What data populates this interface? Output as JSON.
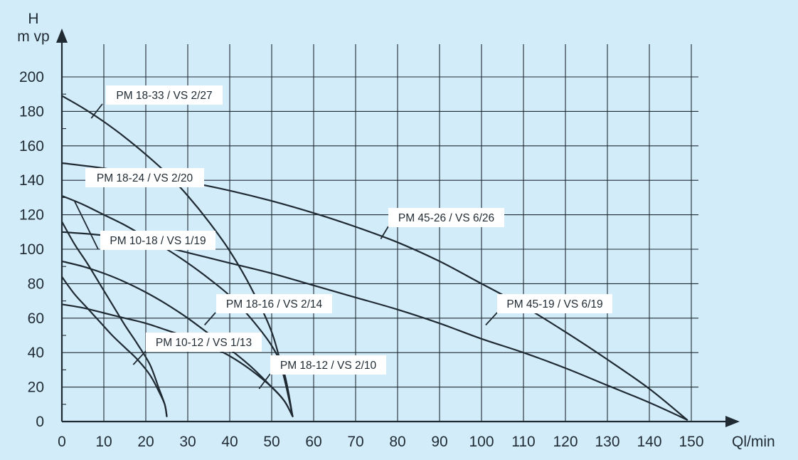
{
  "colors": {
    "background": "#d3ecfa",
    "ink": "#1f2a33",
    "label_box": "#ffffff"
  },
  "chart_data": {
    "type": "line",
    "title": "",
    "xlabel": "Ql/min",
    "ylabel_line1": "H",
    "ylabel_line2": "m vp",
    "xlim": [
      0,
      150
    ],
    "ylim": [
      0,
      200
    ],
    "x_ticks": [
      0,
      10,
      20,
      30,
      40,
      50,
      60,
      70,
      80,
      90,
      100,
      110,
      120,
      130,
      140,
      150
    ],
    "x_tick_labels": [
      "0",
      "10",
      "20",
      "30",
      "40",
      "50",
      "60",
      "70",
      "80",
      "90",
      "100",
      "110",
      "120",
      "130",
      "140",
      "150"
    ],
    "y_ticks": [
      0,
      20,
      40,
      60,
      80,
      100,
      120,
      140,
      160,
      180,
      200
    ],
    "y_tick_labels": [
      "0",
      "20",
      "40",
      "60",
      "80",
      "100",
      "120",
      "140",
      "160",
      "180",
      "200"
    ],
    "grid": true,
    "series": [
      {
        "name": "PM 18-33 / VS 2/27",
        "x": [
          0,
          5,
          10,
          15,
          20,
          25,
          30,
          35,
          40,
          45,
          50,
          53,
          55
        ],
        "y": [
          189,
          182,
          174,
          165,
          155,
          144,
          131,
          116,
          99,
          78,
          52,
          25,
          3
        ],
        "label_anchor": [
          7,
          176
        ]
      },
      {
        "name": "PM 18-24 / VS 2/20",
        "x": [
          0,
          10,
          20,
          30,
          40,
          50,
          60,
          70,
          80,
          90,
          100,
          110,
          120,
          130,
          140,
          149
        ],
        "y": [
          150,
          147,
          143,
          139,
          134,
          128,
          121,
          113,
          104,
          93,
          80,
          67,
          52,
          36,
          19,
          1
        ]
      },
      {
        "name": "PM 10-18 / VS 1/19",
        "x": [
          0,
          5,
          10,
          15,
          20,
          25,
          30,
          35,
          40,
          45,
          50,
          53,
          55
        ],
        "y": [
          131,
          126,
          120,
          114,
          107,
          100,
          92,
          83,
          73,
          60,
          44,
          28,
          3
        ],
        "label_anchor": [
          3,
          128
        ]
      },
      {
        "name": "PM 45-26 / VS 6/26",
        "x": [
          0,
          10,
          20,
          30,
          40,
          50,
          60,
          70,
          80,
          90,
          100,
          110,
          120,
          130,
          140,
          149
        ],
        "y": [
          110,
          108,
          104,
          98,
          92,
          86,
          79,
          72,
          65,
          57,
          48,
          40,
          31,
          21,
          11,
          1
        ],
        "label_anchor": [
          76,
          106
        ]
      },
      {
        "name": "PM 45-19 / VS 6/19",
        "x": [
          0,
          5,
          10,
          15,
          20,
          25,
          30,
          35,
          40,
          45,
          50,
          53,
          55
        ],
        "y": [
          93,
          90,
          86,
          81,
          75,
          68,
          60,
          51,
          42,
          32,
          20,
          12,
          3
        ],
        "label_anchor": [
          101,
          56
        ]
      },
      {
        "name": "PM 18-16 / VS 2/14",
        "x": [
          0,
          3,
          6,
          9,
          12,
          15,
          18,
          21,
          23,
          24.5,
          25
        ],
        "y": [
          116,
          103,
          92,
          80,
          68,
          56,
          45,
          33,
          20,
          10,
          3
        ],
        "label_anchor": [
          34,
          56
        ]
      },
      {
        "name": "PM 10-12 / VS 1/13",
        "x": [
          0,
          5,
          10,
          15,
          20,
          25,
          30,
          35,
          40,
          45,
          50,
          53,
          55
        ],
        "y": [
          68,
          66,
          63,
          60,
          57,
          53,
          49,
          44,
          38,
          30,
          20,
          12,
          3
        ],
        "label_anchor": [
          17,
          33
        ]
      },
      {
        "name": "PM 18-12 / VS 2/10",
        "x": [
          0,
          3,
          6,
          9,
          12,
          15,
          18,
          21,
          23,
          24.5,
          25
        ],
        "y": [
          84,
          74,
          66,
          58,
          50,
          43,
          36,
          27,
          18,
          10,
          3
        ],
        "label_anchor": [
          47,
          19
        ]
      }
    ]
  }
}
